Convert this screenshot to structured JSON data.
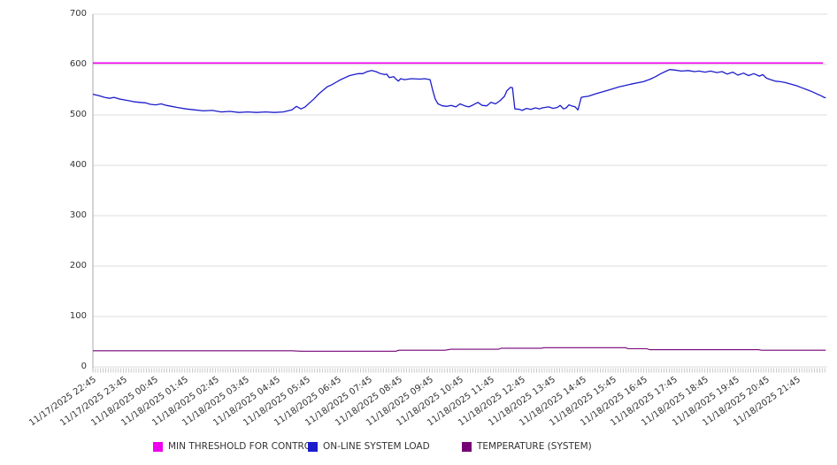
{
  "chart_data": {
    "type": "line",
    "title": "",
    "background_color": "#ffffff",
    "grid_color": "#dddddd",
    "axis_color": "#aaaaaa",
    "tick_color": "#bbbbbb",
    "label_color": "#333333",
    "grid_on": true,
    "legend_position": "bottom",
    "y_axis": {
      "min": 0,
      "max": 700,
      "tick_step": 100,
      "tick_labels": [
        "0",
        "100",
        "200",
        "300",
        "400",
        "500",
        "600",
        "700"
      ]
    },
    "x_axis": {
      "tick_labels": [
        "11/17/2025 22:45",
        "11/17/2025 23:45",
        "11/18/2025 00:45",
        "11/18/2025 01:45",
        "11/18/2025 02:45",
        "11/18/2025 03:45",
        "11/18/2025 04:45",
        "11/18/2025 05:45",
        "11/18/2025 06:45",
        "11/18/2025 07:45",
        "11/18/2025 08:45",
        "11/18/2025 09:45",
        "11/18/2025 10:45",
        "11/18/2025 11:45",
        "11/18/2025 12:45",
        "11/18/2025 13:45",
        "11/18/2025 14:45",
        "11/18/2025 15:45",
        "11/18/2025 16:45",
        "11/18/2025 17:45",
        "11/18/2025 18:45",
        "11/18/2025 19:45",
        "11/18/2025 20:45",
        "11/18/2025 21:45"
      ],
      "hours_span": 23.95,
      "minor_tick_interval_minutes": 5
    },
    "series": [
      {
        "name": "MIN THRESHOLD FOR CONTROL",
        "color": "#ee00ee",
        "width": 1.6,
        "points": [
          [
            0,
            603
          ],
          [
            23.86,
            603
          ]
        ]
      },
      {
        "name": "ON-LINE SYSTEM LOAD",
        "color": "#1c1ccc",
        "width": 1.3,
        "points": [
          [
            0,
            541
          ],
          [
            0.2,
            538
          ],
          [
            0.38,
            535
          ],
          [
            0.55,
            533
          ],
          [
            0.69,
            535
          ],
          [
            0.84,
            532
          ],
          [
            1.01,
            530
          ],
          [
            1.19,
            528
          ],
          [
            1.36,
            526
          ],
          [
            1.53,
            525
          ],
          [
            1.71,
            524
          ],
          [
            1.88,
            521
          ],
          [
            2.05,
            520
          ],
          [
            2.23,
            522
          ],
          [
            2.4,
            519
          ],
          [
            2.57,
            517
          ],
          [
            2.75,
            515
          ],
          [
            3.04,
            512
          ],
          [
            3.33,
            510
          ],
          [
            3.61,
            508
          ],
          [
            3.9,
            509
          ],
          [
            4.19,
            506
          ],
          [
            4.48,
            507
          ],
          [
            4.77,
            505
          ],
          [
            5.06,
            506
          ],
          [
            5.35,
            505
          ],
          [
            5.64,
            506
          ],
          [
            5.93,
            505
          ],
          [
            6.22,
            506
          ],
          [
            6.51,
            510
          ],
          [
            6.65,
            517
          ],
          [
            6.8,
            512
          ],
          [
            6.94,
            516
          ],
          [
            7.08,
            524
          ],
          [
            7.23,
            532
          ],
          [
            7.37,
            541
          ],
          [
            7.52,
            549
          ],
          [
            7.66,
            556
          ],
          [
            7.81,
            560
          ],
          [
            7.95,
            565
          ],
          [
            8.1,
            570
          ],
          [
            8.24,
            574
          ],
          [
            8.39,
            578
          ],
          [
            8.53,
            580
          ],
          [
            8.68,
            582
          ],
          [
            8.82,
            582
          ],
          [
            8.96,
            586
          ],
          [
            9.11,
            588
          ],
          [
            9.25,
            586
          ],
          [
            9.4,
            582
          ],
          [
            9.54,
            580
          ],
          [
            9.6,
            581
          ],
          [
            9.69,
            574
          ],
          [
            9.83,
            576
          ],
          [
            9.89,
            572
          ],
          [
            9.98,
            567
          ],
          [
            10.06,
            572
          ],
          [
            10.18,
            570
          ],
          [
            10.41,
            572
          ],
          [
            10.7,
            571
          ],
          [
            10.84,
            572
          ],
          [
            11.02,
            570
          ],
          [
            11.11,
            548
          ],
          [
            11.19,
            531
          ],
          [
            11.28,
            522
          ],
          [
            11.42,
            518
          ],
          [
            11.57,
            517
          ],
          [
            11.71,
            519
          ],
          [
            11.86,
            516
          ],
          [
            12,
            522
          ],
          [
            12.15,
            518
          ],
          [
            12.29,
            516
          ],
          [
            12.43,
            520
          ],
          [
            12.58,
            525
          ],
          [
            12.72,
            519
          ],
          [
            12.87,
            518
          ],
          [
            13.01,
            525
          ],
          [
            13.16,
            522
          ],
          [
            13.3,
            528
          ],
          [
            13.45,
            537
          ],
          [
            13.53,
            548
          ],
          [
            13.65,
            555
          ],
          [
            13.71,
            554
          ],
          [
            13.79,
            512
          ],
          [
            13.94,
            511
          ],
          [
            14.03,
            509
          ],
          [
            14.17,
            513
          ],
          [
            14.31,
            511
          ],
          [
            14.46,
            514
          ],
          [
            14.6,
            512
          ],
          [
            14.69,
            514
          ],
          [
            14.89,
            516
          ],
          [
            15.04,
            513
          ],
          [
            15.18,
            515
          ],
          [
            15.27,
            519
          ],
          [
            15.38,
            512
          ],
          [
            15.47,
            514
          ],
          [
            15.56,
            520
          ],
          [
            15.64,
            518
          ],
          [
            15.76,
            516
          ],
          [
            15.85,
            510
          ],
          [
            15.9,
            521
          ],
          [
            15.96,
            535
          ],
          [
            16.05,
            536
          ],
          [
            16.19,
            537
          ],
          [
            16.43,
            542
          ],
          [
            16.83,
            549
          ],
          [
            17.21,
            556
          ],
          [
            17.58,
            561
          ],
          [
            17.99,
            566
          ],
          [
            18.22,
            571
          ],
          [
            18.39,
            576
          ],
          [
            18.56,
            582
          ],
          [
            18.74,
            587
          ],
          [
            18.85,
            590
          ],
          [
            19.03,
            589
          ],
          [
            19.23,
            587
          ],
          [
            19.46,
            588
          ],
          [
            19.66,
            586
          ],
          [
            19.81,
            587
          ],
          [
            20.01,
            585
          ],
          [
            20.18,
            587
          ],
          [
            20.39,
            584
          ],
          [
            20.56,
            586
          ],
          [
            20.73,
            581
          ],
          [
            20.91,
            585
          ],
          [
            21.08,
            579
          ],
          [
            21.26,
            583
          ],
          [
            21.43,
            578
          ],
          [
            21.6,
            582
          ],
          [
            21.78,
            577
          ],
          [
            21.89,
            580
          ],
          [
            22.01,
            573
          ],
          [
            22.15,
            570
          ],
          [
            22.3,
            567
          ],
          [
            22.47,
            566
          ],
          [
            22.64,
            564
          ],
          [
            22.82,
            561
          ],
          [
            22.99,
            558
          ],
          [
            23.16,
            554
          ],
          [
            23.34,
            550
          ],
          [
            23.51,
            546
          ],
          [
            23.68,
            541
          ],
          [
            23.8,
            538
          ],
          [
            23.89,
            535
          ],
          [
            23.95,
            534
          ]
        ]
      },
      {
        "name": "TEMPERATURE (SYSTEM)",
        "color": "#750075",
        "width": 1.1,
        "points": [
          [
            0,
            32
          ],
          [
            3,
            32
          ],
          [
            6.5,
            32
          ],
          [
            6.8,
            31
          ],
          [
            9.9,
            31
          ],
          [
            10,
            33
          ],
          [
            11.5,
            33
          ],
          [
            11.7,
            35
          ],
          [
            13.25,
            35
          ],
          [
            13.35,
            37
          ],
          [
            14.65,
            37
          ],
          [
            14.75,
            38
          ],
          [
            17.4,
            38
          ],
          [
            17.5,
            36
          ],
          [
            18.1,
            36
          ],
          [
            18.2,
            34
          ],
          [
            21.75,
            34
          ],
          [
            21.85,
            33
          ],
          [
            23.95,
            33
          ]
        ]
      }
    ]
  }
}
